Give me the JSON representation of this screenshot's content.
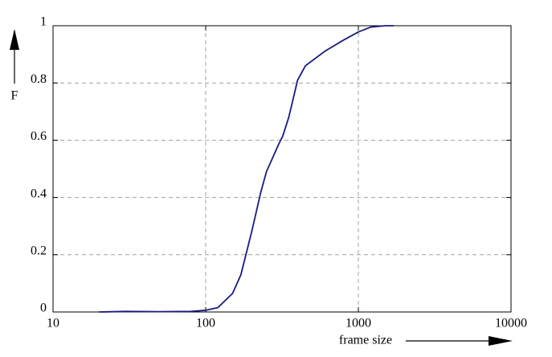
{
  "chart_data": {
    "type": "line",
    "x_label": "frame size",
    "y_label": "F",
    "x": [
      20,
      30,
      50,
      80,
      100,
      120,
      150,
      170,
      200,
      230,
      250,
      300,
      320,
      350,
      400,
      450,
      600,
      800,
      1000,
      1200,
      1500,
      1700
    ],
    "values": [
      0,
      0.002,
      0.001,
      0.002,
      0.006,
      0.015,
      0.065,
      0.13,
      0.28,
      0.42,
      0.49,
      0.585,
      0.615,
      0.68,
      0.81,
      0.86,
      0.91,
      0.95,
      0.978,
      0.995,
      1.0,
      1.0
    ],
    "color": "#1a1a80",
    "xlog": true,
    "xlim": [
      10,
      10000
    ],
    "xticks": [
      10,
      100,
      1000,
      10000
    ],
    "ylim": [
      0,
      1
    ],
    "yticks": [
      0,
      0.2,
      0.4,
      0.6,
      0.8,
      1
    ],
    "grid": true
  }
}
